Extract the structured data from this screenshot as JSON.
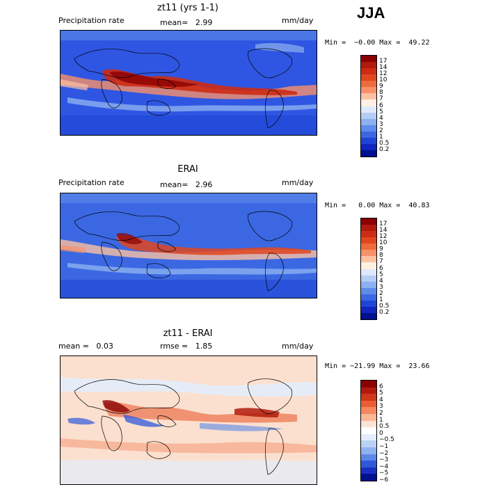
{
  "season": "JJA",
  "panels": [
    {
      "title": "zt11 (yrs 1-1)",
      "left_label": "Precipitation rate",
      "mid_label": "mean=   2.99",
      "right_label": "mm/day",
      "minmax": "Min =  −0.00 Max =  49.22",
      "colorbar_labels": [
        "17",
        "14",
        "12",
        "10",
        "9",
        "8",
        "7",
        "6",
        "5",
        "4",
        "3",
        "2",
        "1",
        "0.5",
        "0.2"
      ]
    },
    {
      "title": "ERAI",
      "left_label": "Precipitation rate",
      "mid_label": "mean=   2.96",
      "right_label": "mm/day",
      "minmax": "Min =   0.00 Max =  40.83",
      "colorbar_labels": [
        "17",
        "14",
        "12",
        "10",
        "9",
        "8",
        "7",
        "6",
        "5",
        "4",
        "3",
        "2",
        "1",
        "0.5",
        "0.2"
      ]
    },
    {
      "title": "zt11 - ERAI",
      "left_label": "mean =   0.03",
      "mid_label": "rmse =   1.85",
      "right_label": "mm/day",
      "minmax": "Min = −21.99 Max =  23.66",
      "colorbar_labels": [
        "6",
        "5",
        "4",
        "3",
        "2",
        "1",
        "0.5",
        "0",
        "−0.5",
        "−1",
        "−2",
        "−3",
        "−4",
        "−5",
        "−6"
      ]
    }
  ],
  "colors": {
    "precip": [
      "#8b0000",
      "#b11a0c",
      "#cd2b14",
      "#e0471f",
      "#ee6b3b",
      "#f7916a",
      "#fcc1a2",
      "#fff0e3",
      "#dfe9fb",
      "#b5cdf5",
      "#8cb0f0",
      "#5f8cea",
      "#3b68e2",
      "#1f45d6",
      "#1024c0",
      "#001090"
    ],
    "diff": [
      "#8b0000",
      "#b11a0c",
      "#d1371b",
      "#ea5d33",
      "#f5885f",
      "#fbb696",
      "#fde3d3",
      "#ffffff",
      "#e3edfb",
      "#bcd2f5",
      "#8fb1ef",
      "#5c87e6",
      "#3058da",
      "#1530c2",
      "#001090"
    ]
  }
}
